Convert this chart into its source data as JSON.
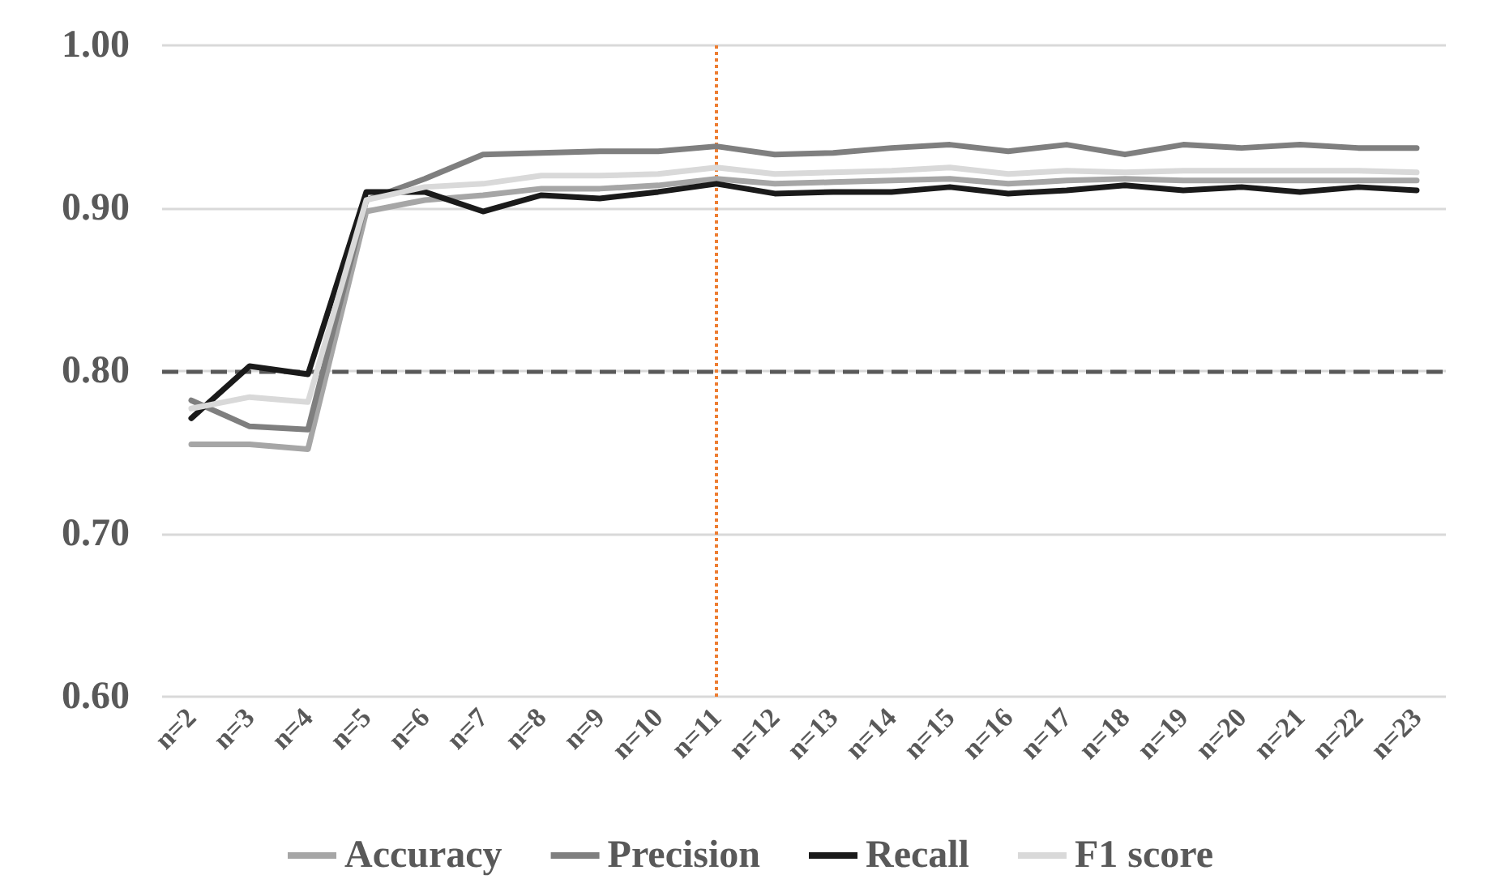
{
  "chart_data": {
    "type": "line",
    "categories": [
      "n=2",
      "n=3",
      "n=4",
      "n=5",
      "n=6",
      "n=7",
      "n=8",
      "n=9",
      "n=10",
      "n=11",
      "n=12",
      "n=13",
      "n=14",
      "n=15",
      "n=16",
      "n=17",
      "n=18",
      "n=19",
      "n=20",
      "n=21",
      "n=22",
      "n=23"
    ],
    "series": [
      {
        "name": "Accuracy",
        "color": "#a6a6a6",
        "values": [
          0.755,
          0.755,
          0.752,
          0.898,
          0.905,
          0.908,
          0.912,
          0.912,
          0.914,
          0.918,
          0.915,
          0.916,
          0.917,
          0.918,
          0.915,
          0.917,
          0.918,
          0.917,
          0.917,
          0.917,
          0.917,
          0.917
        ]
      },
      {
        "name": "Precision",
        "color": "#7f7f7f",
        "values": [
          0.782,
          0.766,
          0.764,
          0.905,
          0.918,
          0.933,
          0.934,
          0.935,
          0.935,
          0.938,
          0.933,
          0.934,
          0.937,
          0.939,
          0.935,
          0.939,
          0.933,
          0.939,
          0.937,
          0.939,
          0.937,
          0.937
        ]
      },
      {
        "name": "Recall",
        "color": "#1a1a1a",
        "values": [
          0.771,
          0.803,
          0.798,
          0.91,
          0.91,
          0.898,
          0.908,
          0.906,
          0.91,
          0.915,
          0.909,
          0.91,
          0.91,
          0.913,
          0.909,
          0.911,
          0.914,
          0.911,
          0.913,
          0.91,
          0.913,
          0.911
        ]
      },
      {
        "name": "F1 score",
        "color": "#d9d9d9",
        "values": [
          0.777,
          0.784,
          0.781,
          0.905,
          0.913,
          0.915,
          0.92,
          0.92,
          0.921,
          0.925,
          0.921,
          0.922,
          0.923,
          0.925,
          0.921,
          0.923,
          0.922,
          0.923,
          0.923,
          0.923,
          0.923,
          0.922
        ]
      }
    ],
    "ylim": [
      0.6,
      1.0
    ],
    "yticks": [
      {
        "value": 0.6,
        "label": "0.60"
      },
      {
        "value": 0.7,
        "label": "0.70"
      },
      {
        "value": 0.8,
        "label": "0.80"
      },
      {
        "value": 0.9,
        "label": "0.90"
      },
      {
        "value": 1.0,
        "label": "1.00"
      }
    ],
    "ref_lines": [
      {
        "axis": "y",
        "value": 0.8,
        "label": null,
        "color": "#595959",
        "line_style": "dashed"
      },
      {
        "axis": "x",
        "value": "n=11",
        "label": null,
        "color": "#ed7d31",
        "line_style": "dotted"
      }
    ],
    "grid": "y",
    "legend": "bottom",
    "marker": "none",
    "line_style": "solid"
  }
}
